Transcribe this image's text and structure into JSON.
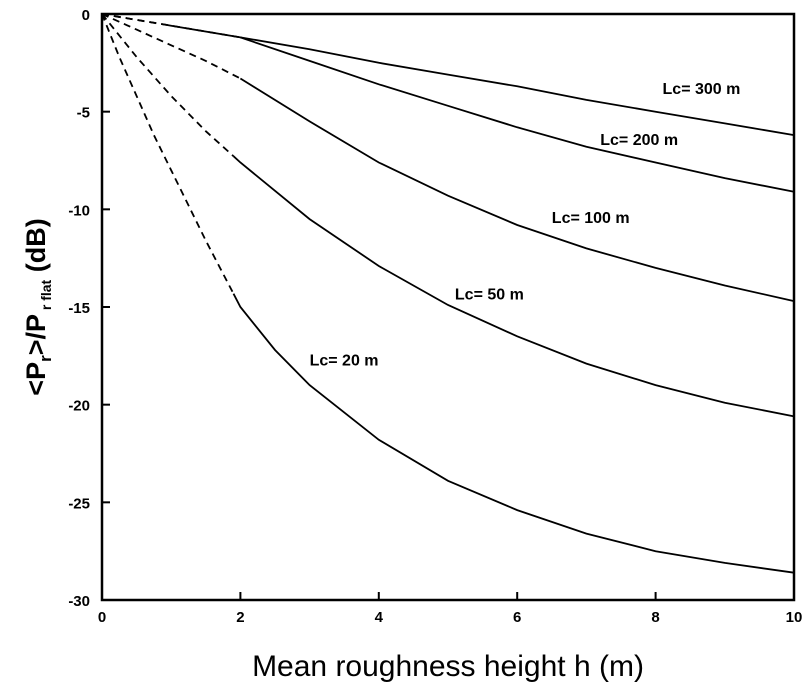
{
  "chart_data": {
    "type": "line",
    "xlabel": "Mean roughness height h (m)",
    "ylabel": {
      "part1": "<P",
      "sub1": "r",
      "part2": ">/P",
      "sub2": " r flat",
      "part3": " (dB)"
    },
    "xlim": [
      0,
      10
    ],
    "ylim": [
      -30,
      0
    ],
    "x_ticks": [
      "0",
      "2",
      "4",
      "6",
      "8",
      "10"
    ],
    "y_ticks": [
      "0",
      "-5",
      "-10",
      "-15",
      "-20",
      "-25",
      "-30"
    ],
    "grid": false,
    "series": [
      {
        "name": "Lc= 300 m",
        "dashed_until_x": 0.9,
        "label_at": [
          8.1,
          -3.8
        ],
        "x": [
          0,
          0.5,
          1,
          2,
          3,
          4,
          5,
          6,
          7,
          8,
          9,
          10
        ],
        "y": [
          0,
          -0.3,
          -0.6,
          -1.2,
          -1.8,
          -2.5,
          -3.1,
          -3.7,
          -4.4,
          -5.0,
          -5.6,
          -6.2
        ]
      },
      {
        "name": "Lc= 200 m",
        "dashed_until_x": 2.0,
        "label_at": [
          7.2,
          -6.4
        ],
        "x": [
          0,
          0.5,
          1,
          2,
          3,
          4,
          5,
          6,
          7,
          8,
          9,
          10
        ],
        "y": [
          0,
          -0.3,
          -0.6,
          -1.2,
          -2.4,
          -3.6,
          -4.7,
          -5.8,
          -6.8,
          -7.6,
          -8.4,
          -9.1
        ]
      },
      {
        "name": "Lc= 100 m",
        "dashed_until_x": 2.0,
        "label_at": [
          6.5,
          -10.4
        ],
        "x": [
          0,
          0.5,
          1,
          1.5,
          2,
          3,
          4,
          5,
          6,
          7,
          8,
          9,
          10
        ],
        "y": [
          0,
          -0.8,
          -1.6,
          -2.4,
          -3.3,
          -5.5,
          -7.6,
          -9.3,
          -10.8,
          -12.0,
          -13.0,
          -13.9,
          -14.7
        ]
      },
      {
        "name": "Lc= 50 m",
        "dashed_until_x": 1.9,
        "label_at": [
          5.1,
          -14.3
        ],
        "x": [
          0,
          0.5,
          1,
          1.5,
          2,
          3,
          4,
          5,
          6,
          7,
          8,
          9,
          10
        ],
        "y": [
          0,
          -2.2,
          -4.2,
          -6.0,
          -7.6,
          -10.5,
          -12.9,
          -14.9,
          -16.5,
          -17.9,
          -19.0,
          -19.9,
          -20.6
        ]
      },
      {
        "name": "Lc= 20 m",
        "dashed_until_x": 1.9,
        "label_at": [
          3.0,
          -17.7
        ],
        "x": [
          0,
          0.25,
          0.5,
          0.75,
          1,
          1.25,
          1.5,
          1.75,
          2,
          2.5,
          3,
          4,
          5,
          6,
          7,
          8,
          9,
          10
        ],
        "y": [
          0,
          -2.2,
          -4.2,
          -6.2,
          -8.0,
          -9.8,
          -11.6,
          -13.3,
          -15.0,
          -17.2,
          -19.0,
          -21.8,
          -23.9,
          -25.4,
          -26.6,
          -27.5,
          -28.1,
          -28.6
        ]
      }
    ]
  }
}
